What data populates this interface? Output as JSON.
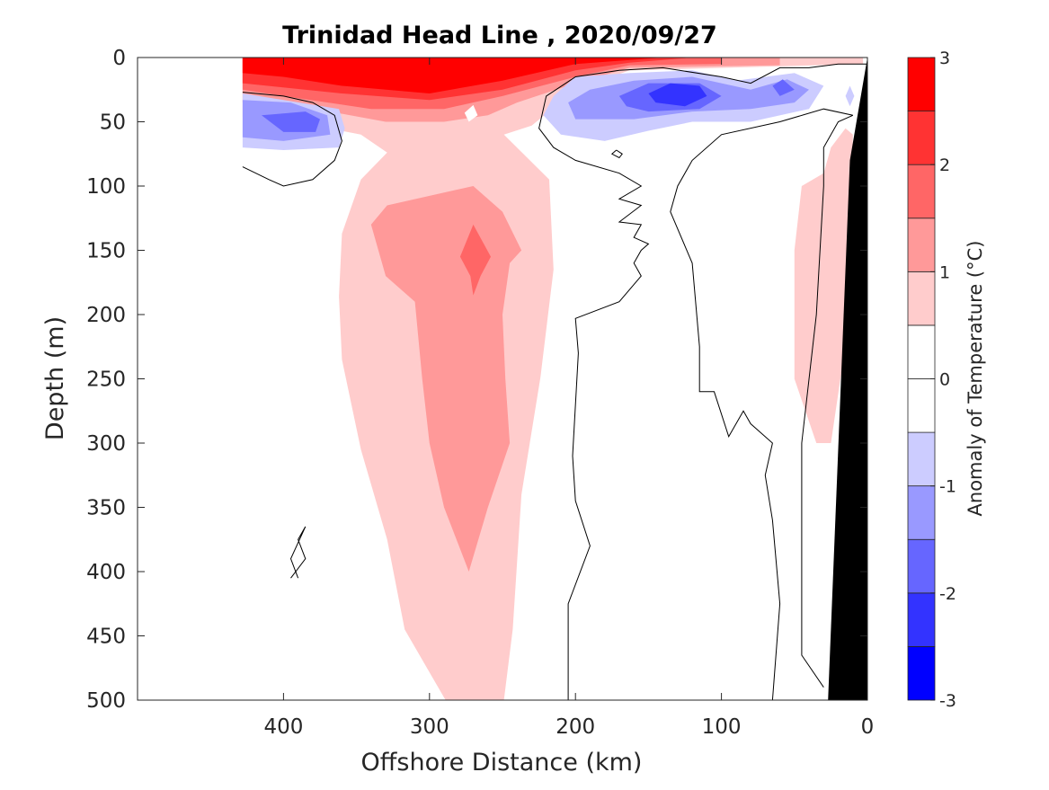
{
  "chart_data": {
    "type": "contourf",
    "title": "Trinidad Head Line , 2020/09/27",
    "xlabel": "Offshore Distance (km)",
    "ylabel": "Depth (m)",
    "xlim": [
      500,
      0
    ],
    "ylim": [
      0,
      500
    ],
    "x_reversed": true,
    "y_reversed": true,
    "xticks": [
      "400",
      "300",
      "200",
      "100",
      "0"
    ],
    "xtick_values": [
      400,
      300,
      200,
      100,
      0
    ],
    "yticks": [
      "0",
      "50",
      "100",
      "150",
      "200",
      "250",
      "300",
      "350",
      "400",
      "450",
      "500"
    ],
    "ytick_values": [
      0,
      50,
      100,
      150,
      200,
      250,
      300,
      350,
      400,
      450,
      500
    ],
    "colorbar": {
      "label": "Anomaly of Temperature (°C)",
      "range": [
        -3,
        3
      ],
      "ticks": [
        "3",
        "2",
        "1",
        "0",
        "-1",
        "-2",
        "-3"
      ],
      "tick_values": [
        3,
        2,
        1,
        0,
        -1,
        -2,
        -3
      ],
      "levels": [
        -3,
        -2.5,
        -2,
        -1.5,
        -1,
        -0.5,
        0,
        0.5,
        1,
        1.5,
        2,
        2.5,
        3
      ],
      "colors": [
        "#0000ff",
        "#3333ff",
        "#6666ff",
        "#9999ff",
        "#ccccff",
        "#ffffff",
        "#ffffff",
        "#ffcccc",
        "#ff9999",
        "#ff6666",
        "#ff3333",
        "#ff0000"
      ]
    },
    "regions": [
      {
        "level": 0.5,
        "color": "#ffcccc",
        "points": [
          [
            428,
            0
          ],
          [
            3,
            0
          ],
          [
            3,
            5
          ],
          [
            163,
            10
          ],
          [
            200,
            25
          ],
          [
            230,
            53
          ],
          [
            249,
            60
          ],
          [
            218,
            95
          ],
          [
            215,
            165
          ],
          [
            224,
            249
          ],
          [
            237,
            340
          ],
          [
            243,
            445
          ],
          [
            249,
            500
          ],
          [
            289,
            500
          ],
          [
            317,
            445
          ],
          [
            329,
            375
          ],
          [
            347,
            305
          ],
          [
            360,
            235
          ],
          [
            362,
            186
          ],
          [
            360,
            137
          ],
          [
            347,
            95
          ],
          [
            329,
            74
          ],
          [
            347,
            60
          ],
          [
            378,
            53
          ],
          [
            428,
            46
          ]
        ]
      },
      {
        "level": 1.0,
        "color": "#ff9999",
        "points": [
          [
            428,
            0
          ],
          [
            60,
            0
          ],
          [
            60,
            6
          ],
          [
            163,
            8
          ],
          [
            200,
            20
          ],
          [
            240,
            35
          ],
          [
            260,
            45
          ],
          [
            290,
            50
          ],
          [
            330,
            50
          ],
          [
            378,
            40
          ],
          [
            428,
            35
          ]
        ]
      },
      {
        "level": 1.0,
        "color": "#ff9999",
        "points": [
          [
            290,
            105
          ],
          [
            329,
            115
          ],
          [
            340,
            130
          ],
          [
            330,
            170
          ],
          [
            310,
            190
          ],
          [
            305,
            250
          ],
          [
            300,
            300
          ],
          [
            290,
            350
          ],
          [
            273,
            400
          ],
          [
            260,
            350
          ],
          [
            245,
            300
          ],
          [
            248,
            250
          ],
          [
            250,
            200
          ],
          [
            245,
            160
          ],
          [
            237,
            150
          ],
          [
            250,
            120
          ],
          [
            270,
            100
          ]
        ]
      },
      {
        "level": 1.5,
        "color": "#ff6666",
        "points": [
          [
            428,
            0
          ],
          [
            100,
            0
          ],
          [
            100,
            5
          ],
          [
            163,
            6
          ],
          [
            200,
            15
          ],
          [
            250,
            30
          ],
          [
            290,
            40
          ],
          [
            340,
            40
          ],
          [
            400,
            30
          ],
          [
            428,
            25
          ]
        ]
      },
      {
        "level": 1.5,
        "color": "#ff6666",
        "points": [
          [
            270,
            130
          ],
          [
            279,
            155
          ],
          [
            272,
            170
          ],
          [
            270,
            185
          ],
          [
            265,
            170
          ],
          [
            258,
            155
          ]
        ]
      },
      {
        "level": 2.0,
        "color": "#ff3333",
        "points": [
          [
            428,
            0
          ],
          [
            120,
            0
          ],
          [
            163,
            4
          ],
          [
            200,
            10
          ],
          [
            250,
            25
          ],
          [
            300,
            33
          ],
          [
            360,
            28
          ],
          [
            428,
            20
          ]
        ]
      },
      {
        "level": 2.5,
        "color": "#ff0000",
        "points": [
          [
            428,
            0
          ],
          [
            140,
            0
          ],
          [
            200,
            5
          ],
          [
            250,
            18
          ],
          [
            300,
            28
          ],
          [
            360,
            22
          ],
          [
            400,
            15
          ],
          [
            428,
            12
          ]
        ]
      },
      {
        "level": 0.0,
        "color": "#ffffff",
        "points": [
          [
            270,
            37
          ],
          [
            276,
            43
          ],
          [
            273,
            50
          ],
          [
            267,
            45
          ]
        ]
      },
      {
        "level": -0.5,
        "color": "#ccccff",
        "points": [
          [
            428,
            28
          ],
          [
            400,
            33
          ],
          [
            362,
            40
          ],
          [
            358,
            55
          ],
          [
            362,
            70
          ],
          [
            400,
            72
          ],
          [
            428,
            70
          ]
        ]
      },
      {
        "level": -1.0,
        "color": "#9999ff",
        "points": [
          [
            428,
            33
          ],
          [
            395,
            35
          ],
          [
            370,
            45
          ],
          [
            368,
            60
          ],
          [
            400,
            65
          ],
          [
            428,
            62
          ]
        ]
      },
      {
        "level": -1.5,
        "color": "#6666ff",
        "points": [
          [
            415,
            45
          ],
          [
            385,
            42
          ],
          [
            375,
            48
          ],
          [
            378,
            58
          ],
          [
            400,
            58
          ]
        ]
      },
      {
        "level": -0.5,
        "color": "#ccccff",
        "points": [
          [
            215,
            30
          ],
          [
            200,
            15
          ],
          [
            163,
            12
          ],
          [
            120,
            10
          ],
          [
            90,
            18
          ],
          [
            50,
            12
          ],
          [
            30,
            22
          ],
          [
            40,
            40
          ],
          [
            80,
            50
          ],
          [
            120,
            50
          ],
          [
            150,
            57
          ],
          [
            180,
            65
          ],
          [
            210,
            60
          ],
          [
            222,
            45
          ]
        ]
      },
      {
        "level": -1.0,
        "color": "#9999ff",
        "points": [
          [
            205,
            35
          ],
          [
            190,
            25
          ],
          [
            160,
            18
          ],
          [
            120,
            15
          ],
          [
            80,
            25
          ],
          [
            55,
            17
          ],
          [
            40,
            25
          ],
          [
            50,
            35
          ],
          [
            80,
            40
          ],
          [
            120,
            42
          ],
          [
            160,
            48
          ],
          [
            200,
            48
          ]
        ]
      },
      {
        "level": -1.5,
        "color": "#6666ff",
        "points": [
          [
            170,
            30
          ],
          [
            150,
            20
          ],
          [
            115,
            20
          ],
          [
            100,
            30
          ],
          [
            115,
            40
          ],
          [
            150,
            42
          ],
          [
            165,
            38
          ]
        ]
      },
      {
        "level": -1.5,
        "color": "#6666ff",
        "points": [
          [
            65,
            22
          ],
          [
            58,
            17
          ],
          [
            50,
            25
          ],
          [
            60,
            30
          ]
        ]
      },
      {
        "level": -2.0,
        "color": "#3333ff",
        "points": [
          [
            150,
            28
          ],
          [
            135,
            20
          ],
          [
            115,
            22
          ],
          [
            110,
            30
          ],
          [
            125,
            38
          ],
          [
            145,
            35
          ]
        ]
      },
      {
        "level": -0.5,
        "color": "#ccccff",
        "points": [
          [
            12,
            22
          ],
          [
            9,
            30
          ],
          [
            12,
            38
          ],
          [
            15,
            30
          ]
        ]
      },
      {
        "level": 0.5,
        "color": "#ffcccc",
        "points": [
          [
            15,
            55
          ],
          [
            10,
            60
          ],
          [
            12,
            200
          ],
          [
            25,
            300
          ],
          [
            35,
            300
          ],
          [
            50,
            250
          ],
          [
            50,
            150
          ],
          [
            45,
            100
          ],
          [
            30,
            90
          ],
          [
            25,
            70
          ]
        ]
      }
    ],
    "zero_contours": [
      [
        [
          428,
          85
        ],
        [
          410,
          95
        ],
        [
          400,
          100
        ],
        [
          380,
          95
        ],
        [
          365,
          80
        ],
        [
          360,
          65
        ],
        [
          365,
          45
        ],
        [
          380,
          35
        ],
        [
          400,
          30
        ],
        [
          428,
          27
        ]
      ],
      [
        [
          0,
          5
        ],
        [
          20,
          5
        ],
        [
          40,
          8
        ],
        [
          60,
          8
        ],
        [
          80,
          20
        ],
        [
          100,
          15
        ],
        [
          140,
          8
        ],
        [
          170,
          10
        ],
        [
          200,
          15
        ],
        [
          220,
          30
        ],
        [
          225,
          55
        ],
        [
          215,
          70
        ],
        [
          200,
          80
        ],
        [
          170,
          90
        ],
        [
          155,
          100
        ],
        [
          170,
          110
        ],
        [
          155,
          115
        ],
        [
          170,
          128
        ],
        [
          155,
          130
        ],
        [
          160,
          140
        ],
        [
          150,
          145
        ],
        [
          155,
          150
        ],
        [
          160,
          160
        ],
        [
          155,
          170
        ],
        [
          170,
          190
        ],
        [
          200,
          203
        ],
        [
          198,
          230
        ],
        [
          202,
          310
        ],
        [
          200,
          345
        ],
        [
          190,
          380
        ],
        [
          205,
          425
        ],
        [
          205,
          440
        ],
        [
          205,
          500
        ]
      ],
      [
        [
          10,
          45
        ],
        [
          30,
          40
        ],
        [
          60,
          50
        ],
        [
          100,
          60
        ],
        [
          120,
          80
        ],
        [
          130,
          100
        ],
        [
          135,
          120
        ],
        [
          120,
          160
        ],
        [
          115,
          225
        ],
        [
          115,
          260
        ],
        [
          105,
          260
        ],
        [
          95,
          295
        ],
        [
          85,
          275
        ],
        [
          80,
          285
        ],
        [
          65,
          300
        ],
        [
          70,
          325
        ],
        [
          65,
          360
        ],
        [
          60,
          425
        ],
        [
          65,
          500
        ]
      ],
      [
        [
          30,
          490
        ],
        [
          45,
          465
        ],
        [
          45,
          300
        ],
        [
          35,
          200
        ],
        [
          30,
          100
        ],
        [
          30,
          70
        ],
        [
          20,
          50
        ],
        [
          10,
          45
        ]
      ],
      [
        [
          395,
          405
        ],
        [
          385,
          390
        ],
        [
          390,
          375
        ],
        [
          385,
          365
        ],
        [
          395,
          390
        ],
        [
          390,
          405
        ]
      ],
      [
        [
          172,
          72
        ],
        [
          175,
          75
        ],
        [
          170,
          78
        ],
        [
          168,
          75
        ],
        [
          172,
          72
        ]
      ]
    ],
    "land_mask": {
      "color": "#000000",
      "points": [
        [
          0,
          0
        ],
        [
          0,
          500
        ],
        [
          27,
          500
        ],
        [
          12,
          80
        ]
      ]
    }
  }
}
